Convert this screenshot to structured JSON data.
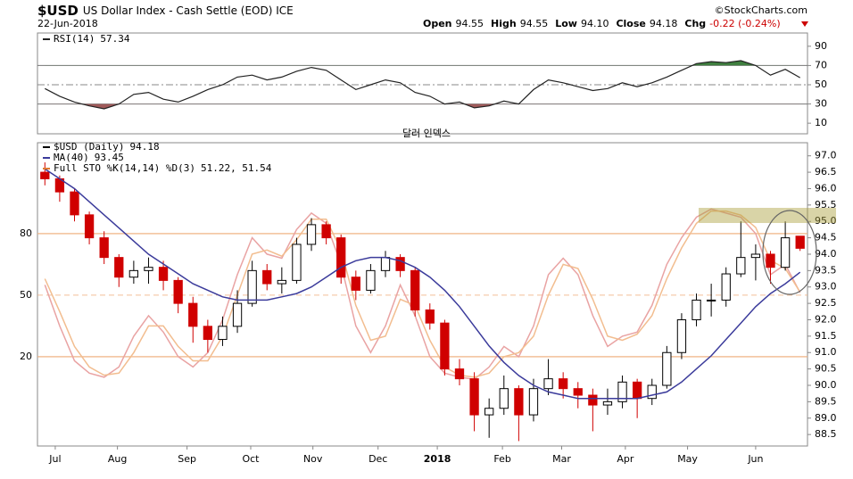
{
  "header": {
    "symbol": "$USD",
    "description": "US Dollar Index - Cash Settle (EOD) ICE",
    "date": "22-Jun-2018",
    "source": "©StockCharts.com",
    "quote": [
      {
        "label": "Open",
        "value": "94.55"
      },
      {
        "label": "High",
        "value": "94.55"
      },
      {
        "label": "Low",
        "value": "94.10"
      },
      {
        "label": "Close",
        "value": "94.18"
      },
      {
        "label": "Chg",
        "value": "-0.22 (-0.24%)"
      }
    ]
  },
  "annotation": "달러 인덱스",
  "chart_data": [
    {
      "type": "line",
      "series": [
        {
          "name": "RSI(14)",
          "legend_value": 57.34,
          "color": "#222222",
          "values": [
            46,
            38,
            32,
            28,
            25,
            30,
            40,
            42,
            35,
            32,
            38,
            45,
            50,
            58,
            60,
            55,
            58,
            64,
            68,
            65,
            55,
            45,
            50,
            55,
            52,
            42,
            38,
            30,
            32,
            26,
            28,
            33,
            30,
            45,
            55,
            52,
            48,
            44,
            46,
            52,
            48,
            52,
            58,
            65,
            72,
            74,
            73,
            75,
            70,
            60,
            66,
            57.34
          ]
        }
      ],
      "xlim": [
        -0.5,
        51.5
      ],
      "ylim": [
        -1,
        101
      ],
      "yticks": [
        90,
        70,
        50,
        30,
        10
      ],
      "ref_lines": [
        30,
        70
      ],
      "mid_line": 50,
      "overbought_color": "#3f7f3f",
      "oversold_color": "#a05a5a"
    },
    {
      "type": "candlestick",
      "open": [
        96.5,
        96.3,
        95.9,
        95.2,
        94.5,
        93.9,
        93.3,
        93.5,
        93.6,
        93.2,
        92.5,
        91.8,
        91.4,
        91.8,
        92.5,
        93.5,
        93.1,
        93.2,
        94.3,
        94.9,
        94.5,
        93.3,
        92.9,
        93.5,
        93.9,
        93.5,
        92.3,
        91.9,
        90.5,
        90.2,
        89.1,
        89.3,
        89.9,
        89.1,
        89.9,
        90.2,
        89.9,
        89.7,
        89.4,
        89.5,
        90.1,
        89.6,
        90.0,
        91.0,
        92.0,
        92.6,
        92.6,
        93.4,
        93.9,
        94.0,
        93.6,
        94.55
      ],
      "high": [
        96.8,
        96.4,
        96.0,
        95.3,
        94.7,
        94.0,
        93.8,
        93.9,
        93.8,
        93.3,
        92.7,
        92.0,
        92.1,
        92.9,
        93.8,
        93.7,
        93.6,
        94.5,
        95.1,
        95.0,
        94.6,
        93.5,
        93.7,
        94.1,
        94.0,
        93.6,
        92.5,
        92.0,
        90.8,
        90.4,
        89.6,
        90.3,
        90.0,
        90.2,
        90.8,
        90.4,
        90.1,
        89.9,
        89.9,
        90.3,
        90.2,
        90.2,
        91.2,
        92.2,
        92.8,
        93.1,
        93.6,
        95.0,
        94.3,
        94.1,
        95.0,
        94.55
      ],
      "low": [
        96.1,
        95.6,
        95.0,
        94.3,
        93.7,
        93.0,
        93.1,
        93.1,
        92.9,
        92.2,
        91.3,
        91.0,
        91.2,
        91.6,
        92.4,
        92.9,
        92.8,
        93.1,
        94.1,
        94.3,
        93.1,
        92.6,
        92.8,
        93.3,
        93.3,
        92.1,
        91.7,
        90.3,
        90.0,
        88.6,
        88.4,
        89.1,
        88.3,
        88.9,
        89.7,
        89.6,
        89.3,
        88.6,
        89.1,
        89.3,
        89.0,
        89.4,
        89.9,
        90.8,
        91.8,
        92.1,
        92.4,
        93.3,
        93.2,
        93.1,
        93.5,
        94.1
      ],
      "close": [
        96.3,
        95.9,
        95.2,
        94.5,
        93.9,
        93.3,
        93.5,
        93.6,
        93.2,
        92.5,
        91.8,
        91.4,
        91.8,
        92.5,
        93.5,
        93.1,
        93.2,
        94.3,
        94.9,
        94.5,
        93.3,
        92.9,
        93.5,
        93.9,
        93.5,
        92.3,
        91.9,
        90.5,
        90.2,
        89.1,
        89.3,
        89.9,
        89.1,
        89.9,
        90.2,
        89.9,
        89.7,
        89.4,
        89.5,
        90.1,
        89.6,
        90.0,
        91.0,
        92.0,
        92.6,
        92.6,
        93.4,
        93.9,
        94.0,
        93.6,
        94.5,
        94.18
      ],
      "up_color": "#000000",
      "down_color": "#d00000",
      "xlim": [
        -0.5,
        51.5
      ],
      "xticks": [
        {
          "value": 0.7,
          "label": "Jul"
        },
        {
          "value": 4.9,
          "label": "Aug"
        },
        {
          "value": 9.6,
          "label": "Sep"
        },
        {
          "value": 13.9,
          "label": "Oct"
        },
        {
          "value": 18.1,
          "label": "Nov"
        },
        {
          "value": 22.5,
          "label": "Dec"
        },
        {
          "value": 26.5,
          "label": "2018"
        },
        {
          "value": 30.9,
          "label": "Feb"
        },
        {
          "value": 34.9,
          "label": "Mar"
        },
        {
          "value": 39.2,
          "label": "Apr"
        },
        {
          "value": 43.4,
          "label": "May"
        },
        {
          "value": 48,
          "label": "Jun"
        }
      ],
      "ylim": [
        88.15,
        97.4
      ],
      "yticks": [
        {
          "value": 97,
          "label": "97.0"
        },
        {
          "value": 96.5,
          "label": "96.5"
        },
        {
          "value": 96,
          "label": "96.0"
        },
        {
          "value": 95.5,
          "label": "95.5"
        },
        {
          "value": 95,
          "label": "95.0"
        },
        {
          "value": 94.5,
          "label": "94.5"
        },
        {
          "value": 94,
          "label": "94.0"
        },
        {
          "value": 93.5,
          "label": "93.5"
        },
        {
          "value": 93,
          "label": "93.0"
        },
        {
          "value": 92.5,
          "label": "92.5"
        },
        {
          "value": 92,
          "label": "92.0"
        },
        {
          "value": 91.5,
          "label": "91.5"
        },
        {
          "value": 91,
          "label": "91.0"
        },
        {
          "value": 90.5,
          "label": "90.5"
        },
        {
          "value": 90,
          "label": "90.0"
        },
        {
          "value": 89.5,
          "label": "89.5"
        },
        {
          "value": 89,
          "label": "89.0"
        },
        {
          "value": 88.5,
          "label": "88.5"
        }
      ],
      "y2lim": [
        -23.5,
        124.3
      ],
      "y2ticks": [
        80,
        50,
        20
      ],
      "y2grid_color": "#f0b080",
      "series": [
        {
          "color": "#3b3b9b",
          "values": [
            96.6,
            96.3,
            96.0,
            95.6,
            95.2,
            94.8,
            94.4,
            94.0,
            93.7,
            93.4,
            93.1,
            92.9,
            92.7,
            92.6,
            92.6,
            92.6,
            92.7,
            92.8,
            93.0,
            93.3,
            93.6,
            93.8,
            93.9,
            93.9,
            93.8,
            93.6,
            93.3,
            92.9,
            92.4,
            91.8,
            91.2,
            90.7,
            90.3,
            90.0,
            89.8,
            89.7,
            89.6,
            89.6,
            89.6,
            89.6,
            89.6,
            89.7,
            89.8,
            90.1,
            90.5,
            90.9,
            91.4,
            91.9,
            92.4,
            92.8,
            93.1,
            93.45
          ]
        },
        {
          "color": "#e9a3a3",
          "axis": "y2",
          "values": [
            55,
            35,
            18,
            12,
            10,
            15,
            30,
            40,
            32,
            20,
            15,
            22,
            38,
            60,
            78,
            70,
            68,
            82,
            90,
            85,
            65,
            35,
            22,
            35,
            55,
            40,
            20,
            12,
            10,
            9,
            15,
            25,
            20,
            35,
            60,
            68,
            60,
            40,
            25,
            30,
            32,
            45,
            65,
            78,
            88,
            92,
            90,
            88,
            80,
            60,
            65,
            51.22
          ]
        },
        {
          "color": "#f2bd8f",
          "axis": "y2",
          "values": [
            58,
            42,
            25,
            15,
            11,
            12,
            22,
            35,
            35,
            25,
            18,
            18,
            30,
            50,
            70,
            72,
            69,
            77,
            87,
            87,
            72,
            45,
            28,
            30,
            48,
            45,
            28,
            15,
            11,
            10,
            12,
            20,
            22,
            30,
            50,
            65,
            63,
            48,
            30,
            28,
            31,
            40,
            58,
            73,
            85,
            91,
            91,
            89,
            83,
            67,
            63,
            51.54
          ]
        }
      ],
      "legend": [
        {
          "name": "$USD (Daily)",
          "value": "94.18",
          "color": "#000000"
        },
        {
          "name": "MA(40)",
          "value": "93.45",
          "color": "#3b3b9b"
        },
        {
          "name": "Full STO %K(14,14) %D(3)",
          "value": "51.22, 51.54",
          "color": "#e07a30"
        }
      ]
    }
  ]
}
